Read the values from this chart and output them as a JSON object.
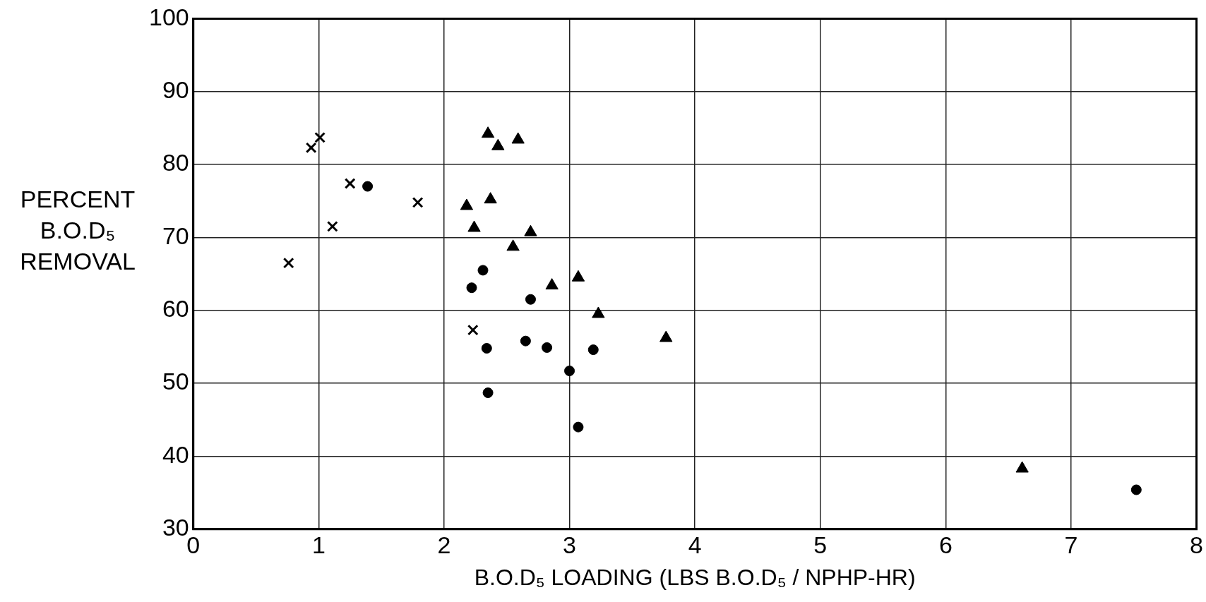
{
  "chart_data": {
    "type": "scatter",
    "xlabel": "B.O.D₅ LOADING (LBS B.O.D₅ / NPHP-HR)",
    "ylabel": "PERCENT B.O.D₅ REMOVAL",
    "xlim": [
      0,
      8
    ],
    "xticks": [
      0,
      1,
      2,
      3,
      4,
      5,
      6,
      7,
      8
    ],
    "ylim": [
      30,
      100
    ],
    "yticks": [
      30,
      40,
      50,
      60,
      70,
      80,
      90,
      100
    ],
    "grid": true,
    "series": [
      {
        "color": "#000000",
        "marker": "circle",
        "x": [
          1.39,
          2.31,
          2.22,
          2.69,
          2.34,
          2.65,
          2.82,
          3.19,
          3.0,
          2.35,
          3.07,
          7.52
        ],
        "values": [
          77.0,
          65.5,
          63.1,
          61.5,
          54.8,
          55.8,
          54.9,
          54.6,
          51.7,
          48.7,
          44.0,
          35.4
        ]
      },
      {
        "color": "#000000",
        "marker": "triangle",
        "x": [
          2.35,
          2.43,
          2.59,
          2.18,
          2.37,
          2.24,
          2.69,
          2.55,
          2.86,
          3.07,
          3.23,
          3.77,
          6.61
        ],
        "values": [
          84.2,
          82.5,
          83.4,
          74.3,
          75.2,
          71.3,
          70.7,
          68.7,
          63.4,
          64.5,
          59.5,
          56.2,
          38.3
        ]
      },
      {
        "color": "#000000",
        "marker": "cross",
        "x": [
          0.94,
          1.01,
          1.25,
          1.11,
          1.79,
          0.76,
          2.23
        ],
        "values": [
          82.3,
          83.7,
          77.4,
          71.5,
          74.8,
          66.5,
          57.3
        ]
      }
    ]
  }
}
